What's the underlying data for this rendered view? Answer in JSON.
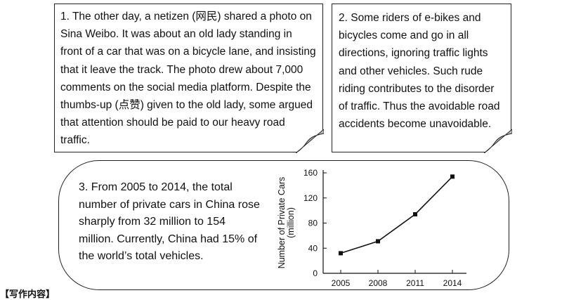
{
  "panel1": {
    "text": "1. The other day, a netizen (网民) shared a photo on Sina Weibo. It was about an old lady standing in front of a car that was on a bicycle lane, and insisting that it leave the track. The photo drew about 7,000 comments on the social media platform. Despite the thumbs-up (点赞) given to the old lady, some argued that attention should be paid to our heavy road traffic."
  },
  "panel2": {
    "text": "2. Some riders of e-bikes and bicycles come and go in all directions, ignoring traffic lights and other vehicles. Such rude riding contributes to the disorder of traffic. Thus the avoidable road accidents become unavoidable."
  },
  "panel3": {
    "text": "3. From 2005 to 2014, the total number of private cars in China rose sharply from 32 million to 154 million. Currently, China had 15% of the world’s total vehicles."
  },
  "cut_text": "【写作内容】",
  "chart_data": {
    "type": "line",
    "categories": [
      "2005",
      "2008",
      "2011",
      "2014"
    ],
    "values": [
      32,
      51,
      94,
      154
    ],
    "title": "",
    "xlabel": "",
    "ylabel": "Number of Private Cars (million)",
    "ylabel_lines": [
      "Number of Private Cars",
      "(million)"
    ],
    "yticks": [
      0,
      40,
      80,
      120,
      160
    ],
    "ylim": [
      0,
      165
    ],
    "color": "#111111"
  }
}
